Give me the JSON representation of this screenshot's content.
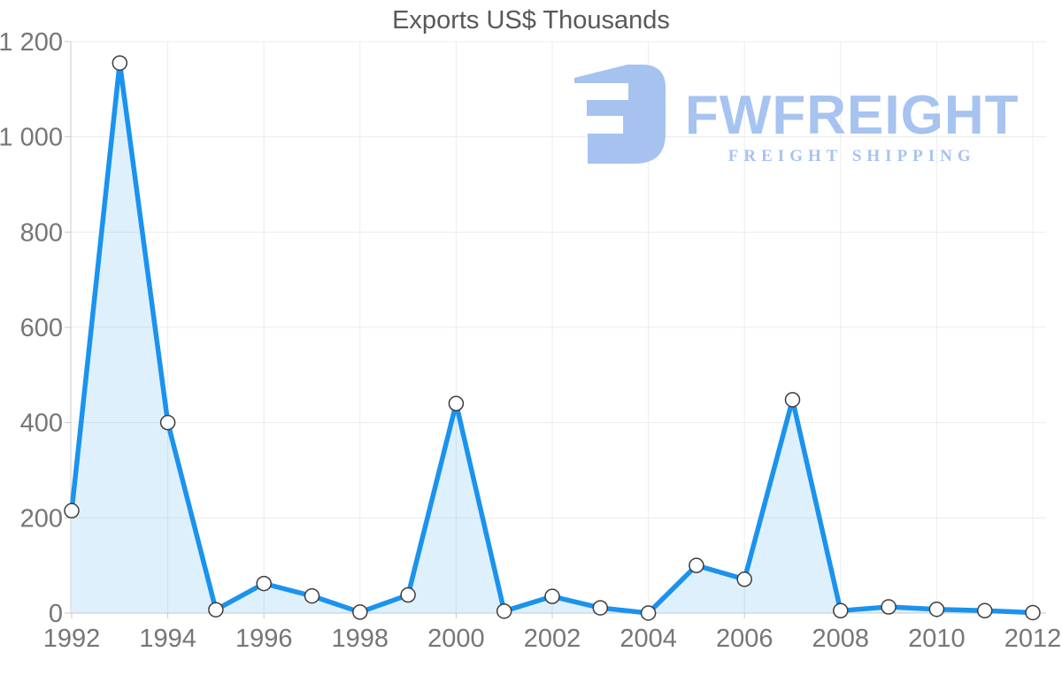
{
  "chart_data": {
    "type": "area",
    "title": "Exports US$ Thousands",
    "series_name": "Exports",
    "x": [
      1992,
      1993,
      1994,
      1995,
      1996,
      1997,
      1998,
      1999,
      2000,
      2001,
      2002,
      2003,
      2004,
      2005,
      2006,
      2007,
      2008,
      2009,
      2010,
      2011,
      2012
    ],
    "values": [
      215,
      1155,
      400,
      7,
      62,
      36,
      2,
      38,
      440,
      4,
      35,
      11,
      0,
      100,
      71,
      448,
      5,
      13,
      8,
      5,
      1
    ],
    "xlabel": "",
    "ylabel": "",
    "xlim": [
      1992,
      2012
    ],
    "ylim": [
      0,
      1200
    ],
    "x_ticks": [
      1992,
      1994,
      1996,
      1998,
      2000,
      2002,
      2004,
      2006,
      2008,
      2010,
      2012
    ],
    "y_ticks": [
      0,
      200,
      400,
      600,
      800,
      1000,
      1200
    ],
    "y_tick_labels": [
      "0",
      "200",
      "400",
      "600",
      "800",
      "1 000",
      "1 200"
    ],
    "grid": true,
    "legend_position": "none",
    "marker_shape": "circle",
    "colors": {
      "line": "#1b93ee",
      "fill": "rgba(30, 148, 238, 0.14)",
      "marker_fill": "#ffffff",
      "marker_stroke": "#3c3c3c",
      "grid": "#ececec",
      "axis": "#c9c9c9",
      "tick_label": "#767676",
      "title": "#58595b"
    }
  },
  "logo": {
    "brand": "FWFREIGHT",
    "tagline": "FREIGHT SHIPPING",
    "color": "#a7c3f0",
    "icon": "stylized-reversed-E-freight-mark"
  }
}
